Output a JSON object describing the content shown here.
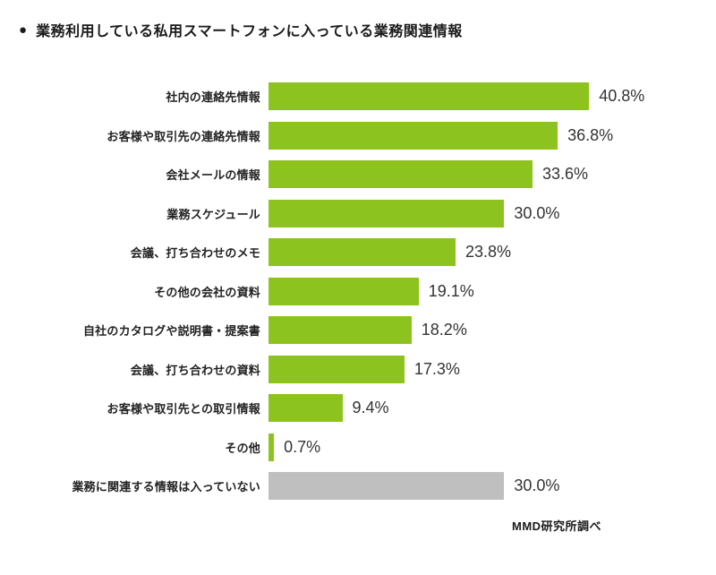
{
  "header": {
    "bullet": "●",
    "title": "業務利用している私用スマートフォンに入っている業務関連情報"
  },
  "chart_data": {
    "type": "bar",
    "orientation": "horizontal",
    "title": "業務利用している私用スマートフォンに入っている業務関連情報",
    "categories": [
      "社内の連絡先情報",
      "お客様や取引先の連絡先情報",
      "会社メールの情報",
      "業務スケジュール",
      "会議、打ち合わせのメモ",
      "その他の会社の資料",
      "自社のカタログや説明書・提案書",
      "会議、打ち合わせの資料",
      "お客様や取引先との取引情報",
      "その他",
      "業務に関連する情報は入っていない"
    ],
    "values": [
      40.8,
      36.8,
      33.6,
      30.0,
      23.8,
      19.1,
      18.2,
      17.3,
      9.4,
      0.7,
      30.0
    ],
    "value_labels": [
      "40.8%",
      "36.8%",
      "33.6%",
      "30.0%",
      "23.8%",
      "19.1%",
      "18.2%",
      "17.3%",
      "9.4%",
      "0.7%",
      "30.0%"
    ],
    "bar_colors": [
      "#8dc31f",
      "#8dc31f",
      "#8dc31f",
      "#8dc31f",
      "#8dc31f",
      "#8dc31f",
      "#8dc31f",
      "#8dc31f",
      "#8dc31f",
      "#8dc31f",
      "#bfbfbf"
    ],
    "xlim": [
      0,
      45
    ],
    "grid": false,
    "legend": false,
    "data_labels_position": "right-of-bar",
    "source_note": "MMD研究所調べ"
  },
  "colors": {
    "bar_green": "#8dc31f",
    "bar_gray": "#bfbfbf",
    "text_dark": "#1a1a1a",
    "value_text": "#333333",
    "background": "#ffffff"
  }
}
